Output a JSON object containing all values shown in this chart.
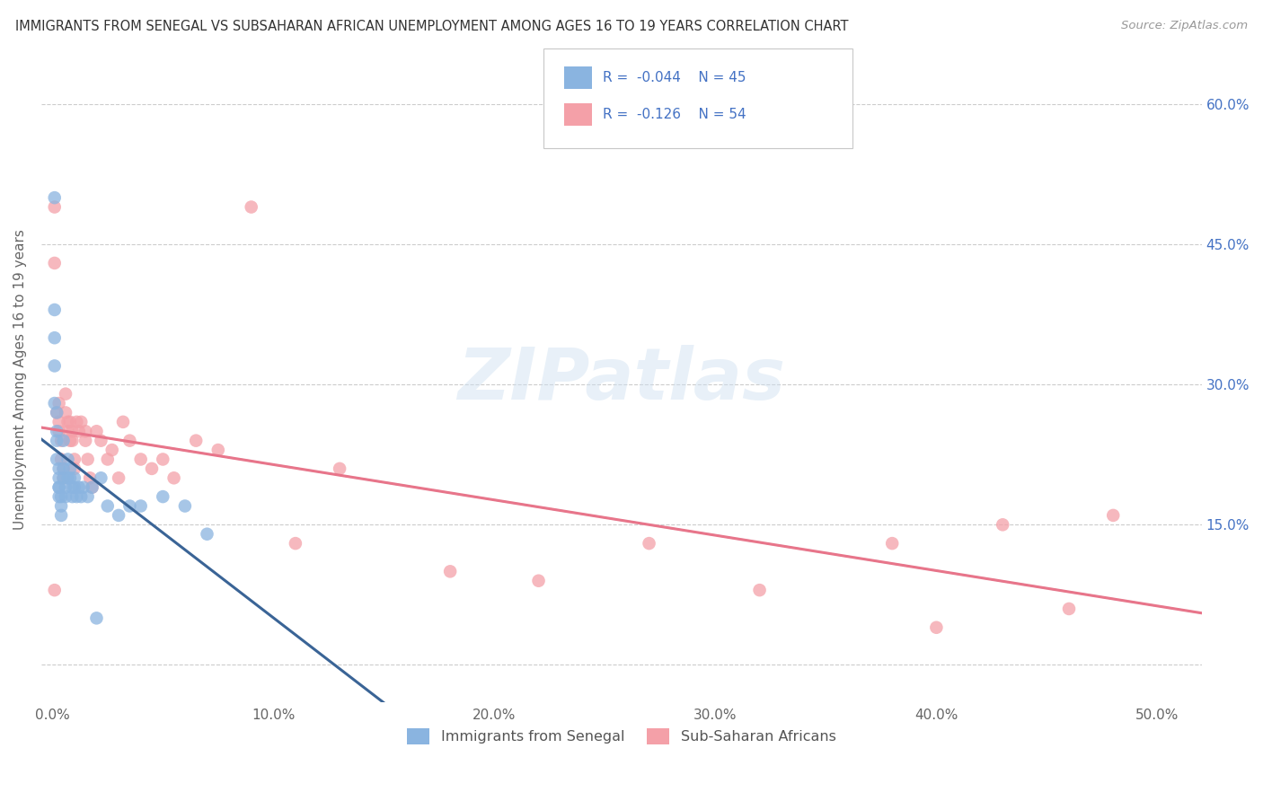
{
  "title": "IMMIGRANTS FROM SENEGAL VS SUBSAHARAN AFRICAN UNEMPLOYMENT AMONG AGES 16 TO 19 YEARS CORRELATION CHART",
  "source": "Source: ZipAtlas.com",
  "ylabel": "Unemployment Among Ages 16 to 19 years",
  "legend_label1": "Immigrants from Senegal",
  "legend_label2": "Sub-Saharan Africans",
  "R1": -0.044,
  "N1": 45,
  "R2": -0.126,
  "N2": 54,
  "xlim": [
    -0.005,
    0.52
  ],
  "ylim": [
    -0.04,
    0.65
  ],
  "color_blue": "#8ab4e0",
  "color_pink": "#f4a0a8",
  "line_color_blue": "#3a6496",
  "line_color_pink": "#e8758a",
  "line_dashed_color": "#a8c8e8",
  "background_color": "#ffffff",
  "senegal_x": [
    0.001,
    0.001,
    0.001,
    0.001,
    0.001,
    0.002,
    0.002,
    0.002,
    0.002,
    0.003,
    0.003,
    0.003,
    0.003,
    0.003,
    0.004,
    0.004,
    0.004,
    0.005,
    0.005,
    0.005,
    0.006,
    0.006,
    0.007,
    0.007,
    0.008,
    0.008,
    0.009,
    0.009,
    0.01,
    0.01,
    0.011,
    0.012,
    0.013,
    0.014,
    0.016,
    0.018,
    0.02,
    0.022,
    0.025,
    0.03,
    0.035,
    0.04,
    0.05,
    0.06,
    0.07
  ],
  "senegal_y": [
    0.5,
    0.38,
    0.35,
    0.32,
    0.28,
    0.27,
    0.25,
    0.24,
    0.22,
    0.21,
    0.2,
    0.19,
    0.19,
    0.18,
    0.18,
    0.17,
    0.16,
    0.24,
    0.21,
    0.2,
    0.19,
    0.18,
    0.22,
    0.2,
    0.21,
    0.2,
    0.19,
    0.18,
    0.2,
    0.19,
    0.18,
    0.19,
    0.18,
    0.19,
    0.18,
    0.19,
    0.05,
    0.2,
    0.17,
    0.16,
    0.17,
    0.17,
    0.18,
    0.17,
    0.14
  ],
  "subsaharan_x": [
    0.001,
    0.001,
    0.001,
    0.002,
    0.003,
    0.003,
    0.003,
    0.004,
    0.004,
    0.005,
    0.005,
    0.006,
    0.006,
    0.007,
    0.007,
    0.008,
    0.008,
    0.009,
    0.009,
    0.01,
    0.01,
    0.011,
    0.012,
    0.013,
    0.015,
    0.015,
    0.016,
    0.017,
    0.018,
    0.02,
    0.022,
    0.025,
    0.027,
    0.03,
    0.032,
    0.035,
    0.04,
    0.045,
    0.05,
    0.055,
    0.065,
    0.075,
    0.09,
    0.11,
    0.13,
    0.18,
    0.22,
    0.27,
    0.32,
    0.38,
    0.4,
    0.43,
    0.46,
    0.48
  ],
  "subsaharan_y": [
    0.49,
    0.43,
    0.08,
    0.27,
    0.28,
    0.26,
    0.25,
    0.24,
    0.22,
    0.21,
    0.2,
    0.29,
    0.27,
    0.26,
    0.25,
    0.24,
    0.26,
    0.25,
    0.24,
    0.22,
    0.21,
    0.26,
    0.25,
    0.26,
    0.25,
    0.24,
    0.22,
    0.2,
    0.19,
    0.25,
    0.24,
    0.22,
    0.23,
    0.2,
    0.26,
    0.24,
    0.22,
    0.21,
    0.22,
    0.2,
    0.24,
    0.23,
    0.49,
    0.13,
    0.21,
    0.1,
    0.09,
    0.13,
    0.08,
    0.13,
    0.04,
    0.15,
    0.06,
    0.16
  ]
}
